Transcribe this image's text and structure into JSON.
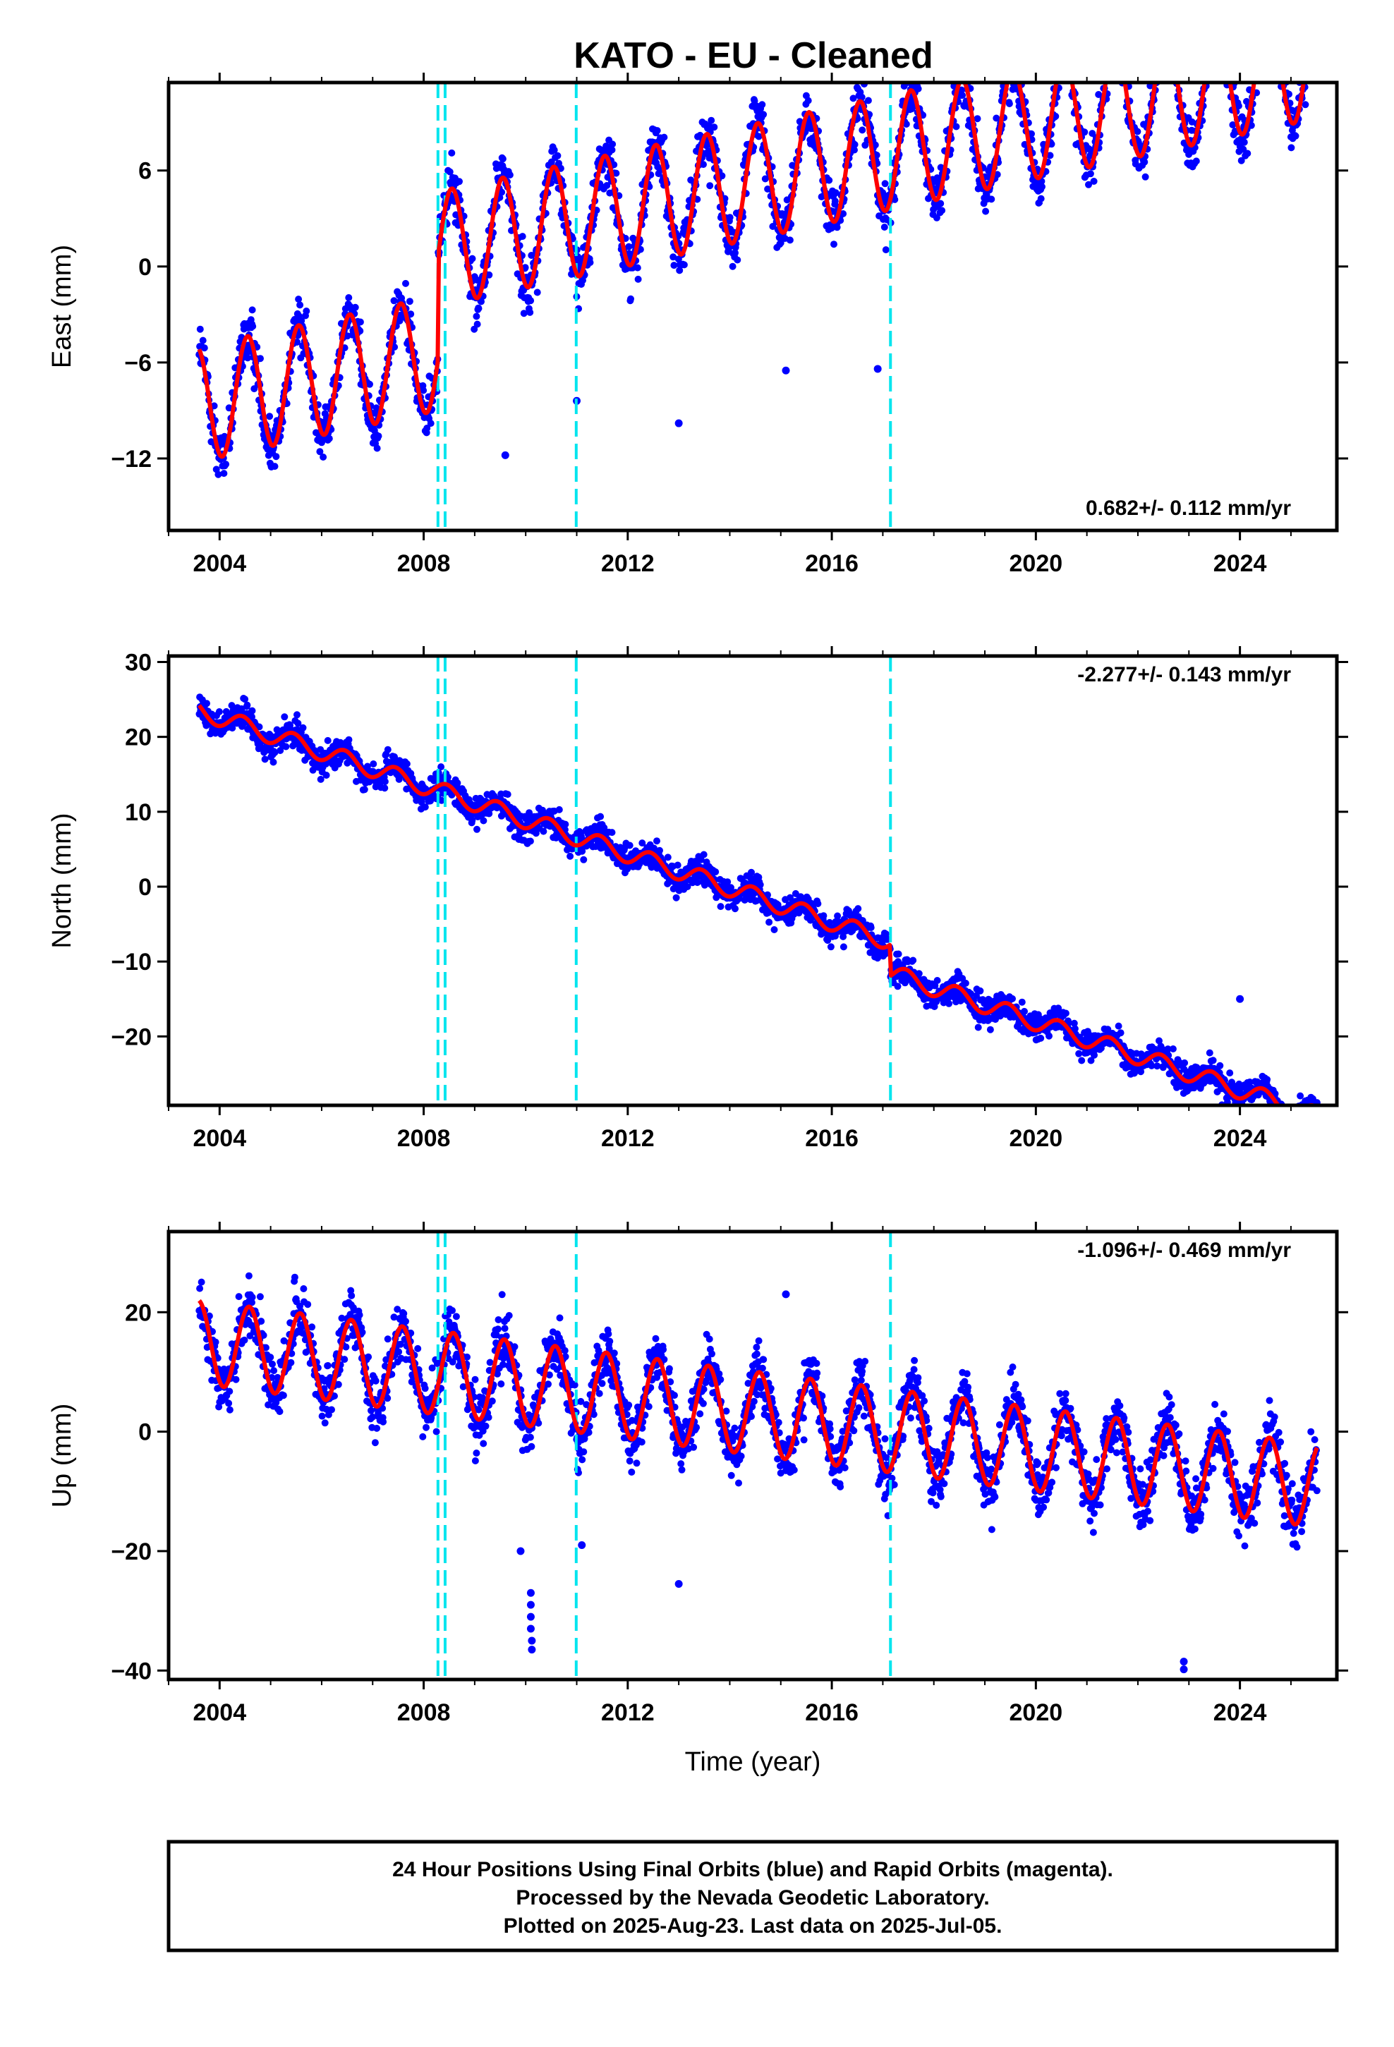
{
  "chart_data": {
    "type": "scatter",
    "title": "KATO  - EU - Cleaned",
    "xlabel": "Time (year)",
    "x_ticks": [
      "2004",
      "2008",
      "2012",
      "2016",
      "2020",
      "2024"
    ],
    "xlim": [
      2003.0,
      2025.9
    ],
    "data_span": [
      2003.6,
      2025.51
    ],
    "equipment_change_years": [
      2008.28,
      2008.42,
      2010.99,
      2017.15
    ],
    "colors": {
      "observations": "#0000ff",
      "model": "#ff0000",
      "offsets": "#00e5ee",
      "frame": "#000000"
    },
    "panels": [
      {
        "name": "east",
        "ylabel": "East (mm)",
        "ylim": [
          -16.5,
          11.5
        ],
        "y_ticks": [
          "6",
          "0",
          "-6",
          "-12"
        ],
        "rate_label": "0.682+/- 0.112 mm/yr",
        "rate_position": "bottom-right",
        "model": {
          "trend_mm_per_yr": 0.682,
          "at_year": 2003.6,
          "start_mm": -8.6,
          "annual_amplitude_mm": 3.6,
          "peak_phase_year": 0.55,
          "offsets": [
            {
              "year": 2008.28,
              "mm": 6.5
            }
          ]
        },
        "scatter_sd_mm": 1.2,
        "outliers": [
          [
            2009.6,
            -11.8
          ],
          [
            2013.0,
            -9.8
          ],
          [
            2011.0,
            -8.4
          ],
          [
            2015.1,
            -6.5
          ],
          [
            2016.9,
            -6.4
          ]
        ]
      },
      {
        "name": "north",
        "ylabel": "North (mm)",
        "ylim": [
          -29.2,
          30.8
        ],
        "y_ticks": [
          "30",
          "20",
          "10",
          "0",
          "-10",
          "-20"
        ],
        "rate_label": "-2.277+/- 0.143 mm/yr",
        "rate_position": "top-right",
        "model": {
          "trend_mm_per_yr": -2.277,
          "at_year": 2003.6,
          "start_mm": 23.5,
          "annual_amplitude_mm": 1.2,
          "peak_phase_year": 0.45,
          "offsets": [
            {
              "year": 2017.15,
              "mm": -4.2
            }
          ]
        },
        "scatter_sd_mm": 1.3,
        "outliers": [
          [
            2024.0,
            -15.0
          ]
        ]
      },
      {
        "name": "up",
        "ylabel": "Up (mm)",
        "ylim": [
          -41.5,
          33.5
        ],
        "y_ticks": [
          "20",
          "0",
          "-20",
          "-40"
        ],
        "rate_label": "-1.096+/- 0.469 mm/yr",
        "rate_position": "top-right",
        "model": {
          "trend_mm_per_yr": -1.096,
          "at_year": 2003.6,
          "start_mm": 15.0,
          "annual_amplitude_mm": 7.0,
          "peak_phase_year": 0.58,
          "offsets": []
        },
        "scatter_sd_mm": 3.5,
        "outliers": [
          [
            2010.1,
            -27.0
          ],
          [
            2010.1,
            -29.0
          ],
          [
            2010.1,
            -31.0
          ],
          [
            2010.1,
            -33.0
          ],
          [
            2010.12,
            -35.0
          ],
          [
            2010.12,
            -36.5
          ],
          [
            2009.9,
            -20.0
          ],
          [
            2022.9,
            -38.5
          ],
          [
            2022.9,
            -39.8
          ],
          [
            2015.1,
            23.0
          ],
          [
            2013.0,
            -25.5
          ],
          [
            2011.1,
            -19.0
          ]
        ]
      }
    ],
    "footer": [
      "24 Hour Positions Using Final Orbits (blue) and Rapid Orbits (magenta).",
      "Processed by the Nevada Geodetic Laboratory.",
      "Plotted on 2025-Aug-23. Last data on 2025-Jul-05."
    ]
  }
}
